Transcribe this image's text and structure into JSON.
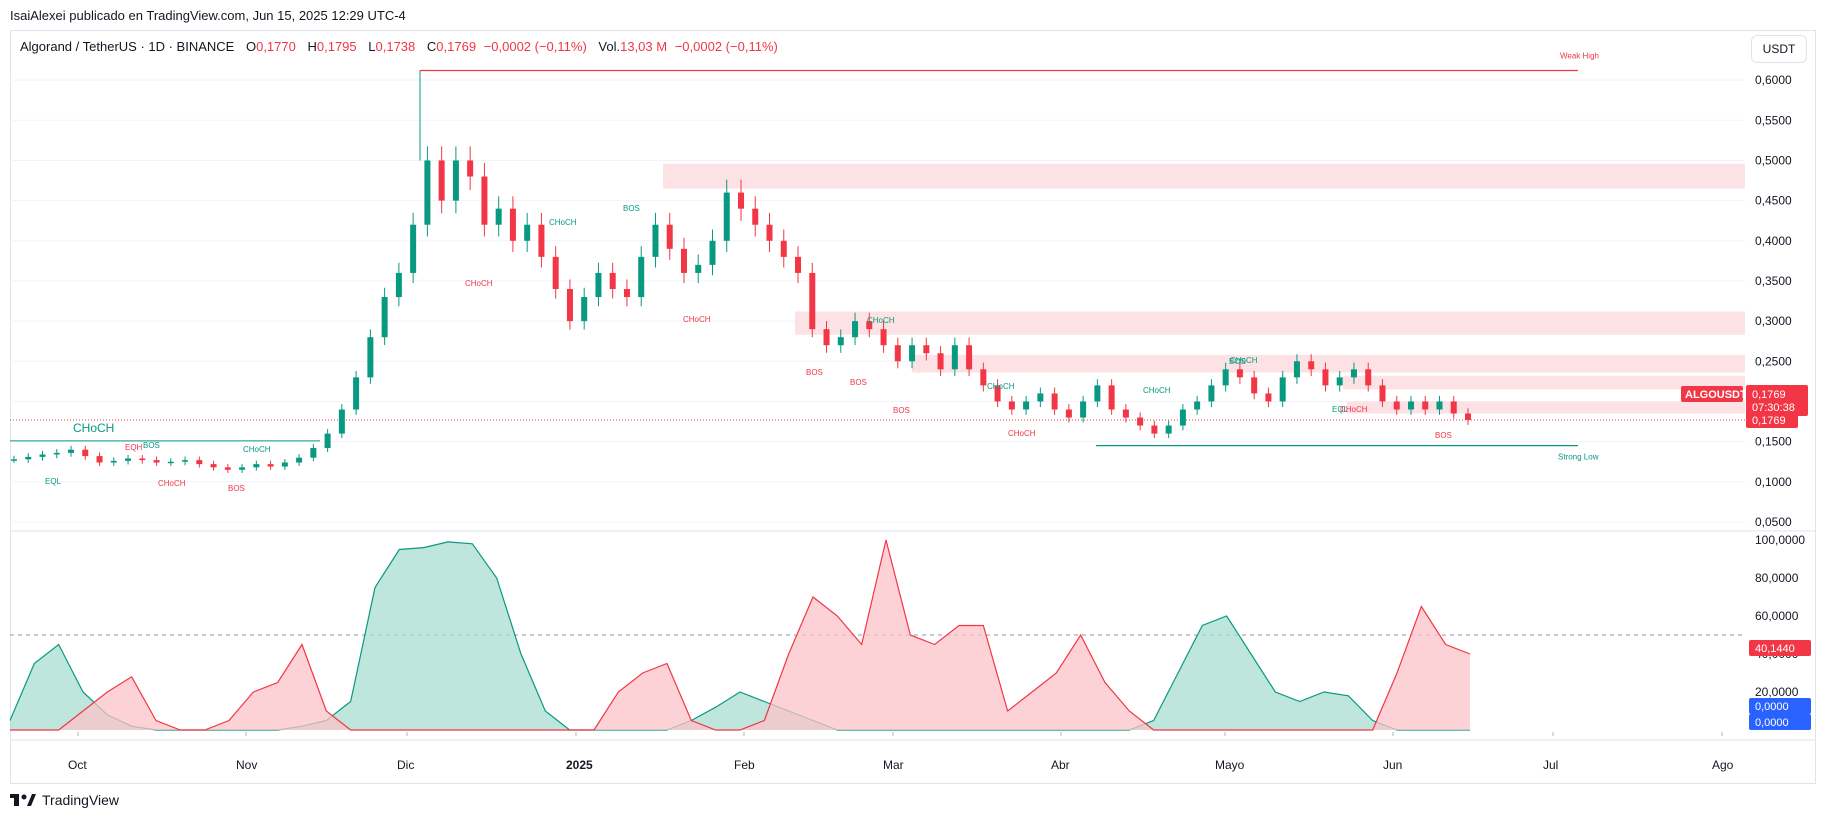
{
  "header": {
    "caption": "IsaiAlexei publicado en TradingView.com, Jun 15, 2025 12:29 UTC-4"
  },
  "legend": {
    "symbol": "Algorand / TetherUS · 1D · BINANCE",
    "open_key": "O",
    "open_value": "0,1770",
    "high_key": "H",
    "high_value": "0,1795",
    "low_key": "L",
    "low_value": "0,1738",
    "close_key": "C",
    "close_value": "0,1769",
    "change": "−0,0002 (−0,11%)",
    "volume_label": "Vol.",
    "volume_value": "13,03 M",
    "volume_change": "−0,0002 (−0,11%)"
  },
  "currency_button": "USDT",
  "footer": {
    "brand": "TradingView"
  },
  "colors": {
    "up": "#089981",
    "down": "#f23645",
    "zone": "#fddde0",
    "grid": "#f0f3fa",
    "axis_text": "#131722",
    "badge_red": "#f23645",
    "badge_blue": "#2962ff"
  },
  "chart_data": [
    {
      "type": "candlestick",
      "title": "",
      "x_ticks": [
        "Oct",
        "Nov",
        "Dic",
        "2025",
        "Feb",
        "Mar",
        "Abr",
        "Mayo",
        "Jun",
        "Jul",
        "Ago"
      ],
      "y_ticks": [
        "0,6000",
        "0,5500",
        "0,5000",
        "0,4500",
        "0,4000",
        "0,3500",
        "0,3000",
        "0,2500",
        "0,2000",
        "0,1500",
        "0,1000",
        "0,0500"
      ],
      "ylim": [
        0.04,
        0.635
      ],
      "close_path": [
        0.128,
        0.131,
        0.134,
        0.136,
        0.14,
        0.132,
        0.124,
        0.126,
        0.129,
        0.127,
        0.124,
        0.125,
        0.127,
        0.122,
        0.118,
        0.115,
        0.118,
        0.122,
        0.119,
        0.124,
        0.13,
        0.142,
        0.16,
        0.19,
        0.23,
        0.28,
        0.33,
        0.36,
        0.42,
        0.5,
        0.45,
        0.5,
        0.48,
        0.42,
        0.44,
        0.4,
        0.42,
        0.38,
        0.34,
        0.3,
        0.33,
        0.36,
        0.34,
        0.33,
        0.38,
        0.42,
        0.39,
        0.36,
        0.37,
        0.4,
        0.46,
        0.44,
        0.42,
        0.4,
        0.38,
        0.36,
        0.29,
        0.27,
        0.28,
        0.3,
        0.29,
        0.27,
        0.25,
        0.27,
        0.26,
        0.24,
        0.27,
        0.24,
        0.22,
        0.2,
        0.19,
        0.2,
        0.21,
        0.19,
        0.18,
        0.2,
        0.22,
        0.19,
        0.18,
        0.17,
        0.16,
        0.17,
        0.19,
        0.2,
        0.22,
        0.24,
        0.23,
        0.21,
        0.2,
        0.23,
        0.25,
        0.24,
        0.22,
        0.23,
        0.24,
        0.22,
        0.2,
        0.19,
        0.2,
        0.19,
        0.2,
        0.185,
        0.177
      ],
      "horizontal_levels": [
        {
          "label": "Weak High",
          "value": 0.612
        },
        {
          "label": "Strong Low",
          "value": 0.145
        },
        {
          "label": "",
          "value": 0.1769
        }
      ],
      "zones": [
        {
          "low": 0.465,
          "high": 0.496
        },
        {
          "low": 0.283,
          "high": 0.312
        },
        {
          "low": 0.236,
          "high": 0.258
        },
        {
          "low": 0.215,
          "high": 0.232
        },
        {
          "low": 0.185,
          "high": 0.2
        }
      ],
      "structure_labels": [
        "CHoCH",
        "EQL",
        "EQH",
        "BOS",
        "CHoCH",
        "BOS",
        "CHoCH",
        "CHoCH",
        "CHoCH",
        "BOS",
        "CHoCH",
        "BOS",
        "BOS",
        "CHoCH",
        "BOS",
        "CHoCH",
        "CHoCH",
        "CHoCH",
        "CHoCH",
        "BOS",
        "EQL",
        "CHoCH",
        "BOS"
      ],
      "price_badges": {
        "symbol": "ALGOUSDT",
        "last": "0,1769",
        "countdown": "07:30:38",
        "line": "0,1769"
      }
    },
    {
      "type": "area",
      "title": "",
      "y_ticks": [
        "100,0000",
        "80,0000",
        "60,0000",
        "40,0000",
        "20,0000"
      ],
      "ylim": [
        0,
        100
      ],
      "reference_line": 50,
      "series": [
        {
          "values": [
            5,
            35,
            45,
            20,
            8,
            2,
            0,
            0,
            0,
            0,
            0,
            0,
            2,
            5,
            15,
            75,
            95,
            96,
            99,
            98,
            80,
            40,
            10,
            0,
            0,
            0,
            0,
            0,
            5,
            12,
            20,
            15,
            10,
            5,
            0,
            0,
            0,
            0,
            0,
            0,
            0,
            0,
            0,
            0,
            0,
            0,
            0,
            5,
            30,
            55,
            60,
            40,
            20,
            15,
            20,
            18,
            5,
            0,
            0,
            0,
            0
          ]
        },
        {
          "values": [
            0,
            0,
            0,
            10,
            20,
            28,
            5,
            0,
            0,
            5,
            20,
            25,
            45,
            10,
            0,
            0,
            0,
            0,
            0,
            0,
            0,
            0,
            0,
            0,
            0,
            20,
            30,
            35,
            5,
            0,
            0,
            5,
            40,
            70,
            60,
            45,
            100,
            50,
            45,
            55,
            55,
            10,
            20,
            30,
            50,
            25,
            10,
            0,
            0,
            0,
            0,
            0,
            0,
            0,
            0,
            0,
            0,
            30,
            65,
            45,
            40
          ]
        }
      ],
      "badges": [
        "40,1440",
        "0,0000",
        "0,0000"
      ]
    }
  ]
}
